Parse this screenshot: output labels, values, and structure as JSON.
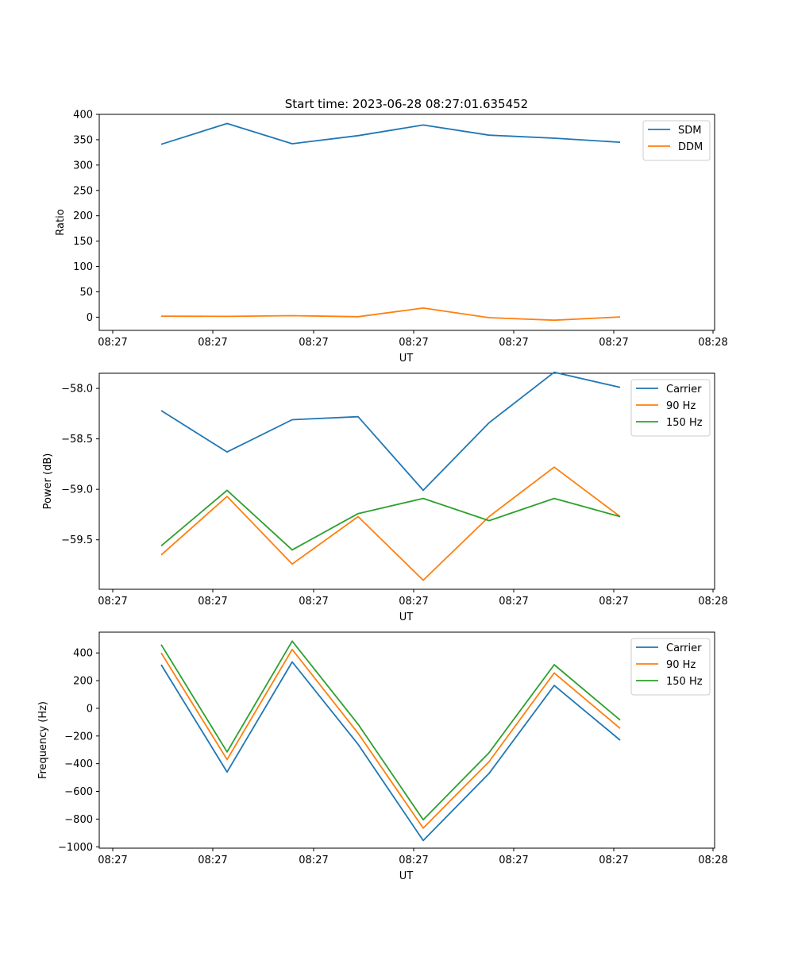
{
  "figure": {
    "title": "Start time: 2023-06-28 08:27:01.635452"
  },
  "colors": {
    "blue": "#1f77b4",
    "orange": "#ff7f0e",
    "green": "#2ca02c"
  },
  "chart_data": [
    {
      "type": "line",
      "title": "Start time: 2023-06-28 08:27:01.635452",
      "xlabel": "UT",
      "ylabel": "Ratio",
      "xticks": [
        "08:27",
        "08:27",
        "08:27",
        "08:27",
        "08:27",
        "08:27",
        "08:28"
      ],
      "yticks": [
        0,
        50,
        100,
        150,
        200,
        250,
        300,
        350,
        400
      ],
      "ytick_labels": [
        "0",
        "50",
        "100",
        "150",
        "200",
        "250",
        "300",
        "350",
        "400"
      ],
      "ylim": [
        -26,
        400
      ],
      "legend_position": "top-right",
      "series": [
        {
          "name": "SDM",
          "color": "#1f77b4",
          "values": [
            341,
            382,
            342,
            358,
            379,
            359,
            353,
            345
          ]
        },
        {
          "name": "DDM",
          "color": "#ff7f0e",
          "values": [
            2,
            1.5,
            3,
            1,
            18,
            -1,
            -6,
            0.5
          ]
        }
      ]
    },
    {
      "type": "line",
      "title": "",
      "xlabel": "UT",
      "ylabel": "Power (dB)",
      "xticks": [
        "08:27",
        "08:27",
        "08:27",
        "08:27",
        "08:27",
        "08:27",
        "08:28"
      ],
      "yticks": [
        -58.0,
        -58.5,
        -59.0,
        -59.5
      ],
      "ytick_labels": [
        "−58.0",
        "−58.5",
        "−59.0",
        "−59.5"
      ],
      "ylim": [
        -59.99,
        -57.85
      ],
      "legend_position": "top-right",
      "series": [
        {
          "name": "Carrier",
          "color": "#1f77b4",
          "values": [
            -58.22,
            -58.63,
            -58.31,
            -58.28,
            -59.01,
            -58.34,
            -57.84,
            -57.99
          ]
        },
        {
          "name": "90 Hz",
          "color": "#ff7f0e",
          "values": [
            -59.65,
            -59.07,
            -59.74,
            -59.27,
            -59.9,
            -59.27,
            -58.78,
            -59.27
          ]
        },
        {
          "name": "150 Hz",
          "color": "#2ca02c",
          "values": [
            -59.56,
            -59.01,
            -59.6,
            -59.24,
            -59.09,
            -59.31,
            -59.09,
            -59.27
          ]
        }
      ]
    },
    {
      "type": "line",
      "title": "",
      "xlabel": "UT",
      "ylabel": "Frequency (Hz)",
      "xticks": [
        "08:27",
        "08:27",
        "08:27",
        "08:27",
        "08:27",
        "08:27",
        "08:28"
      ],
      "yticks": [
        400,
        200,
        0,
        -200,
        -400,
        -600,
        -800,
        -1000
      ],
      "ytick_labels": [
        "400",
        "200",
        "0",
        "−200",
        "−400",
        "−600",
        "−800",
        "−1000"
      ],
      "ylim": [
        -1010,
        550
      ],
      "legend_position": "top-right",
      "series": [
        {
          "name": "Carrier",
          "color": "#1f77b4",
          "values": [
            315,
            -460,
            335,
            -260,
            -955,
            -470,
            165,
            -230
          ]
        },
        {
          "name": "90 Hz",
          "color": "#ff7f0e",
          "values": [
            400,
            -370,
            425,
            -180,
            -865,
            -385,
            255,
            -145
          ]
        },
        {
          "name": "150 Hz",
          "color": "#2ca02c",
          "values": [
            460,
            -315,
            485,
            -115,
            -805,
            -320,
            315,
            -85
          ]
        }
      ]
    }
  ]
}
